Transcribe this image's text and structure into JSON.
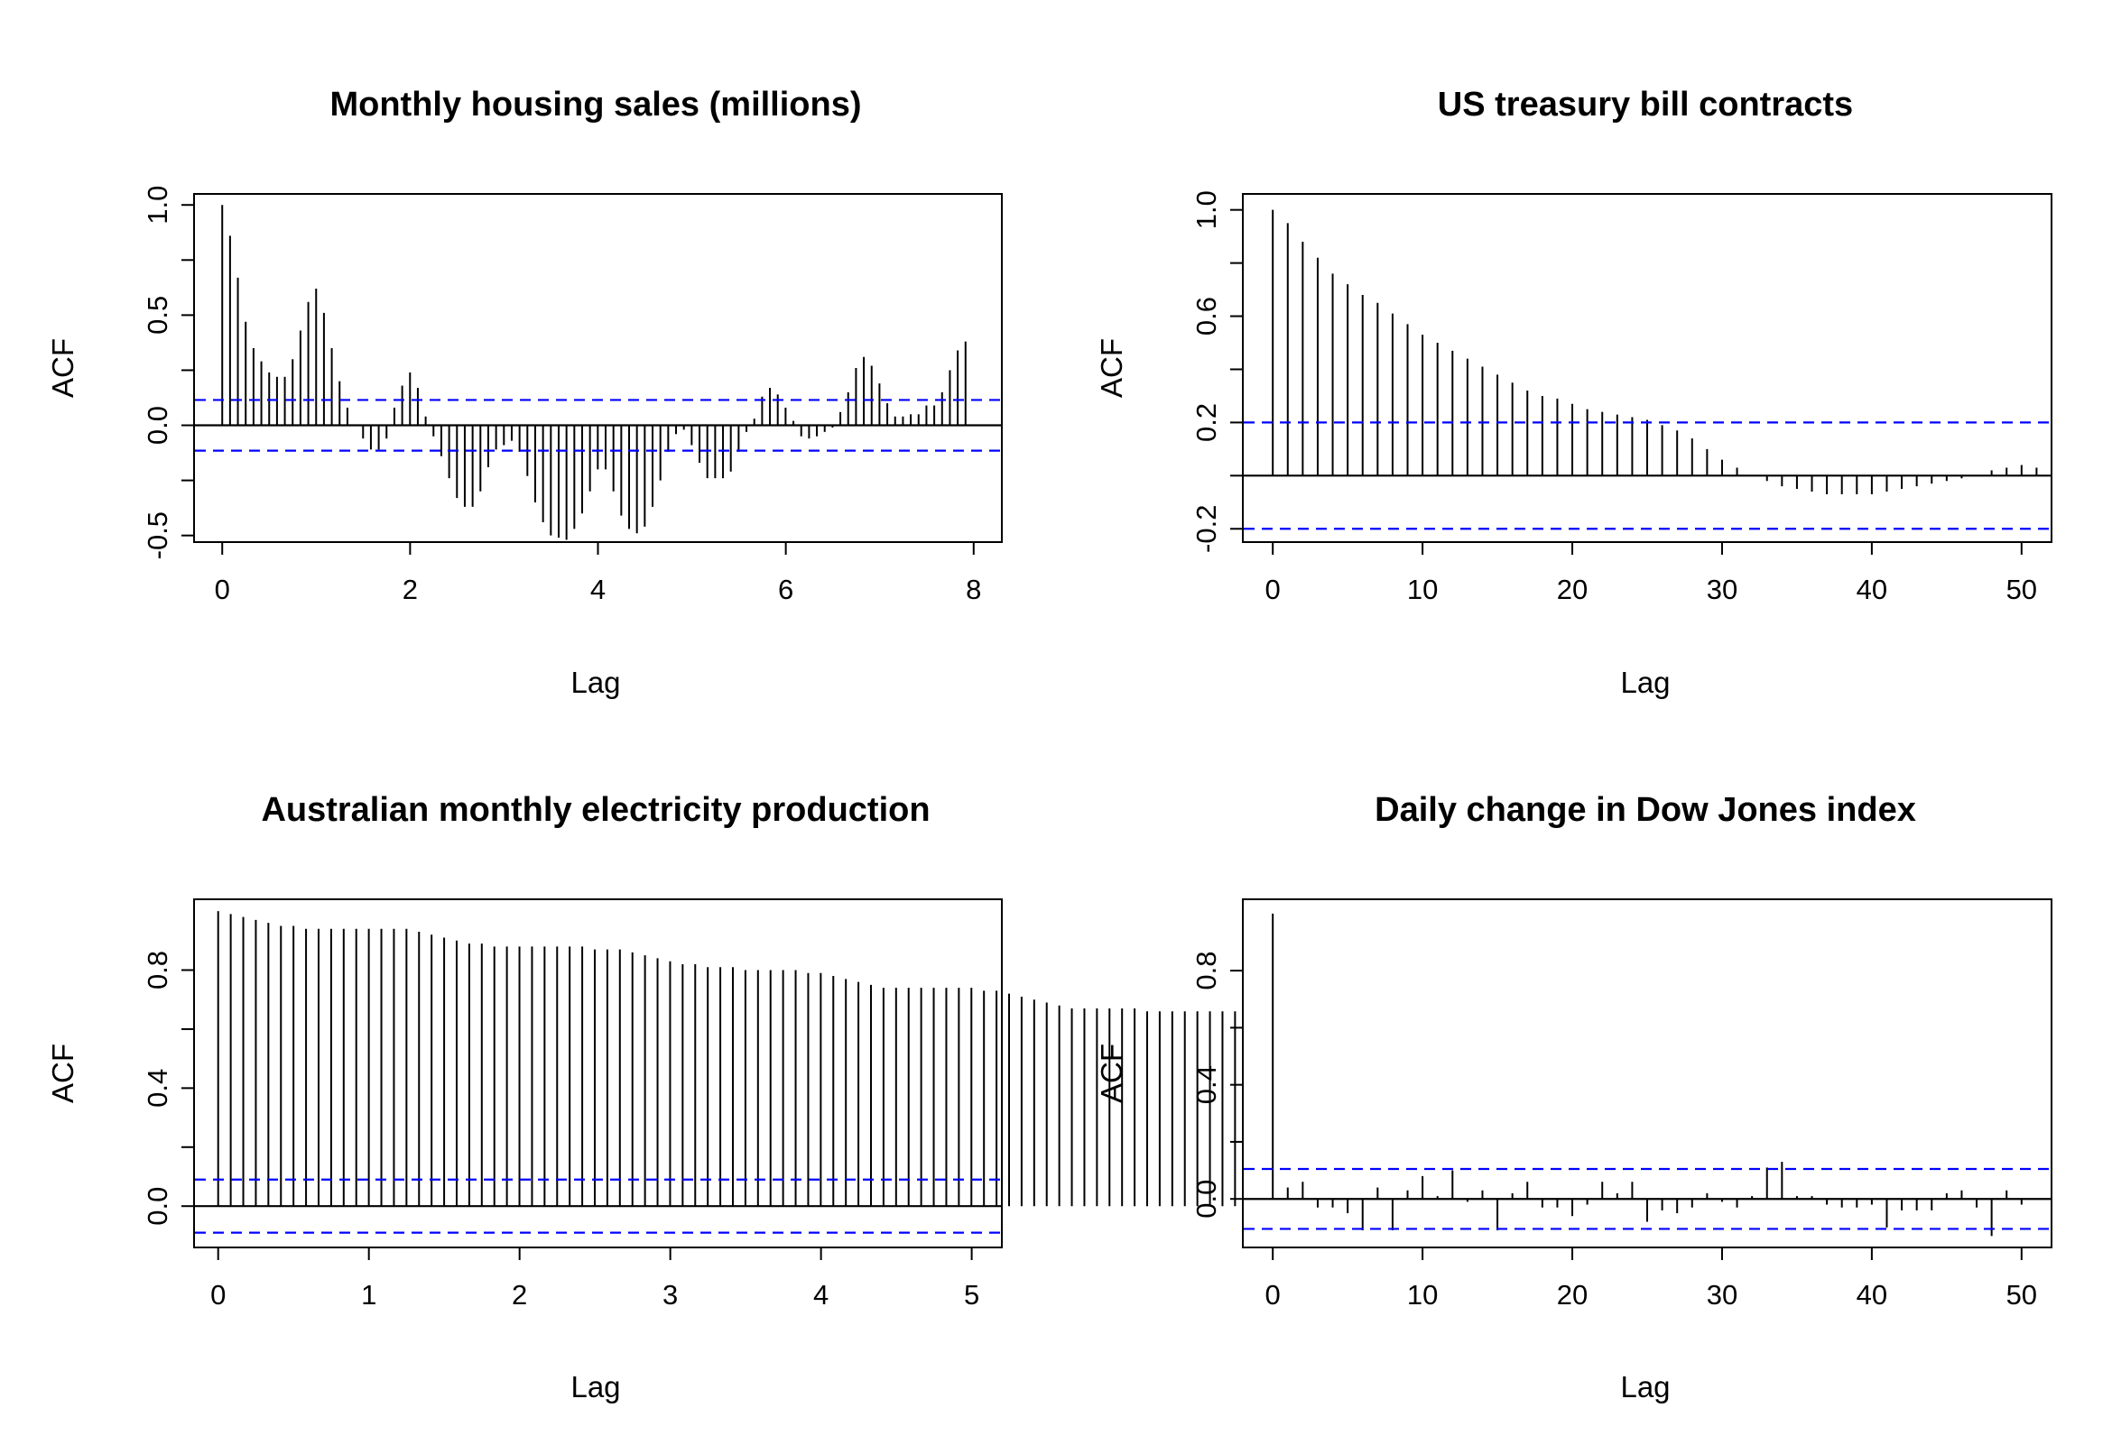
{
  "figure": {
    "background": "#ffffff",
    "spike_color": "#000000",
    "ci_color": "#0000ff"
  },
  "chart_data": [
    {
      "type": "bar",
      "subtype": "acf",
      "title": "Monthly housing sales (millions)",
      "xlabel": "Lag",
      "ylabel": "ACF",
      "xlim": [
        -0.3,
        8.3
      ],
      "ylim": [
        -0.53,
        1.05
      ],
      "xticks": [
        "0",
        "2",
        "4",
        "6",
        "8"
      ],
      "yticks": [
        "-0.5",
        "0.0",
        "0.5",
        "1.0"
      ],
      "lag_step": 0.0833,
      "acf": [
        1.0,
        0.86,
        0.67,
        0.47,
        0.35,
        0.29,
        0.24,
        0.22,
        0.22,
        0.3,
        0.43,
        0.56,
        0.62,
        0.51,
        0.35,
        0.2,
        0.08,
        0.0,
        -0.06,
        -0.11,
        -0.11,
        -0.06,
        0.08,
        0.18,
        0.24,
        0.17,
        0.04,
        -0.05,
        -0.14,
        -0.24,
        -0.33,
        -0.37,
        -0.37,
        -0.3,
        -0.19,
        -0.11,
        -0.09,
        -0.07,
        -0.12,
        -0.23,
        -0.35,
        -0.44,
        -0.5,
        -0.51,
        -0.52,
        -0.47,
        -0.4,
        -0.3,
        -0.2,
        -0.2,
        -0.3,
        -0.41,
        -0.47,
        -0.49,
        -0.46,
        -0.37,
        -0.25,
        -0.12,
        -0.04,
        -0.02,
        -0.09,
        -0.17,
        -0.24,
        -0.24,
        -0.24,
        -0.21,
        -0.12,
        -0.03,
        0.03,
        0.13,
        0.17,
        0.14,
        0.08,
        0.02,
        -0.05,
        -0.06,
        -0.05,
        -0.03,
        -0.01,
        0.06,
        0.15,
        0.26,
        0.31,
        0.27,
        0.19,
        0.1,
        0.04,
        0.04,
        0.05,
        0.05,
        0.09,
        0.09,
        0.15,
        0.25,
        0.34,
        0.38
      ],
      "ci": 0.115
    },
    {
      "type": "bar",
      "subtype": "acf",
      "title": "US treasury bill contracts",
      "xlabel": "Lag",
      "ylabel": "ACF",
      "xlim": [
        -2,
        52
      ],
      "ylim": [
        -0.25,
        1.06
      ],
      "xticks": [
        "0",
        "10",
        "20",
        "30",
        "40",
        "50"
      ],
      "yticks": [
        "-0.2",
        "0.2",
        "0.6",
        "1.0"
      ],
      "lag_step": 1,
      "acf": [
        1.0,
        0.95,
        0.88,
        0.82,
        0.76,
        0.72,
        0.68,
        0.65,
        0.61,
        0.57,
        0.53,
        0.5,
        0.47,
        0.44,
        0.41,
        0.38,
        0.35,
        0.32,
        0.3,
        0.29,
        0.27,
        0.25,
        0.24,
        0.23,
        0.22,
        0.21,
        0.19,
        0.17,
        0.14,
        0.1,
        0.06,
        0.03,
        0.0,
        -0.02,
        -0.04,
        -0.05,
        -0.06,
        -0.07,
        -0.07,
        -0.07,
        -0.07,
        -0.06,
        -0.05,
        -0.04,
        -0.03,
        -0.02,
        -0.01,
        0.0,
        0.02,
        0.03,
        0.04,
        0.03
      ],
      "ci": 0.2
    },
    {
      "type": "bar",
      "subtype": "acf",
      "title": "Australian monthly electricity production",
      "xlabel": "Lag",
      "ylabel": "ACF",
      "xlim": [
        -0.16,
        5.2
      ],
      "ylim": [
        -0.14,
        1.04
      ],
      "xticks": [
        "0",
        "1",
        "2",
        "3",
        "4",
        "5"
      ],
      "yticks": [
        "0.0",
        "0.4",
        "0.8"
      ],
      "lag_step": 0.0833,
      "acf": [
        1.0,
        0.99,
        0.98,
        0.97,
        0.96,
        0.95,
        0.95,
        0.94,
        0.94,
        0.94,
        0.94,
        0.94,
        0.94,
        0.94,
        0.94,
        0.94,
        0.93,
        0.92,
        0.91,
        0.9,
        0.89,
        0.89,
        0.88,
        0.88,
        0.88,
        0.88,
        0.88,
        0.88,
        0.88,
        0.88,
        0.87,
        0.87,
        0.87,
        0.86,
        0.85,
        0.84,
        0.83,
        0.82,
        0.82,
        0.81,
        0.81,
        0.81,
        0.8,
        0.8,
        0.8,
        0.8,
        0.8,
        0.79,
        0.79,
        0.78,
        0.77,
        0.76,
        0.75,
        0.74,
        0.74,
        0.74,
        0.74,
        0.74,
        0.74,
        0.74,
        0.74,
        0.73,
        0.73,
        0.72,
        0.71,
        0.7,
        0.69,
        0.68,
        0.67,
        0.67,
        0.67,
        0.67,
        0.67,
        0.67,
        0.66,
        0.66,
        0.66,
        0.66,
        0.66,
        0.66,
        0.66,
        0.66
      ],
      "ci": 0.09
    },
    {
      "type": "bar",
      "subtype": "acf",
      "title": "Daily change in Dow Jones index",
      "xlabel": "Lag",
      "ylabel": "ACF",
      "xlim": [
        -2,
        52
      ],
      "ylim": [
        -0.17,
        1.05
      ],
      "xticks": [
        "0",
        "10",
        "20",
        "30",
        "40",
        "50"
      ],
      "yticks": [
        "0.0",
        "0.4",
        "0.8"
      ],
      "lag_step": 1,
      "acf": [
        1.0,
        0.04,
        0.06,
        -0.03,
        -0.03,
        -0.05,
        -0.11,
        0.04,
        -0.11,
        0.03,
        0.08,
        0.01,
        0.1,
        -0.01,
        0.03,
        -0.11,
        0.02,
        0.06,
        -0.03,
        -0.03,
        -0.06,
        -0.02,
        0.06,
        0.02,
        0.06,
        -0.08,
        -0.04,
        -0.05,
        -0.03,
        0.02,
        -0.01,
        -0.03,
        0.01,
        0.11,
        0.13,
        0.01,
        0.01,
        -0.02,
        -0.03,
        -0.03,
        -0.02,
        -0.1,
        -0.04,
        -0.04,
        -0.04,
        0.02,
        0.03,
        -0.03,
        -0.13,
        0.03,
        -0.02
      ],
      "ci": 0.105
    }
  ]
}
